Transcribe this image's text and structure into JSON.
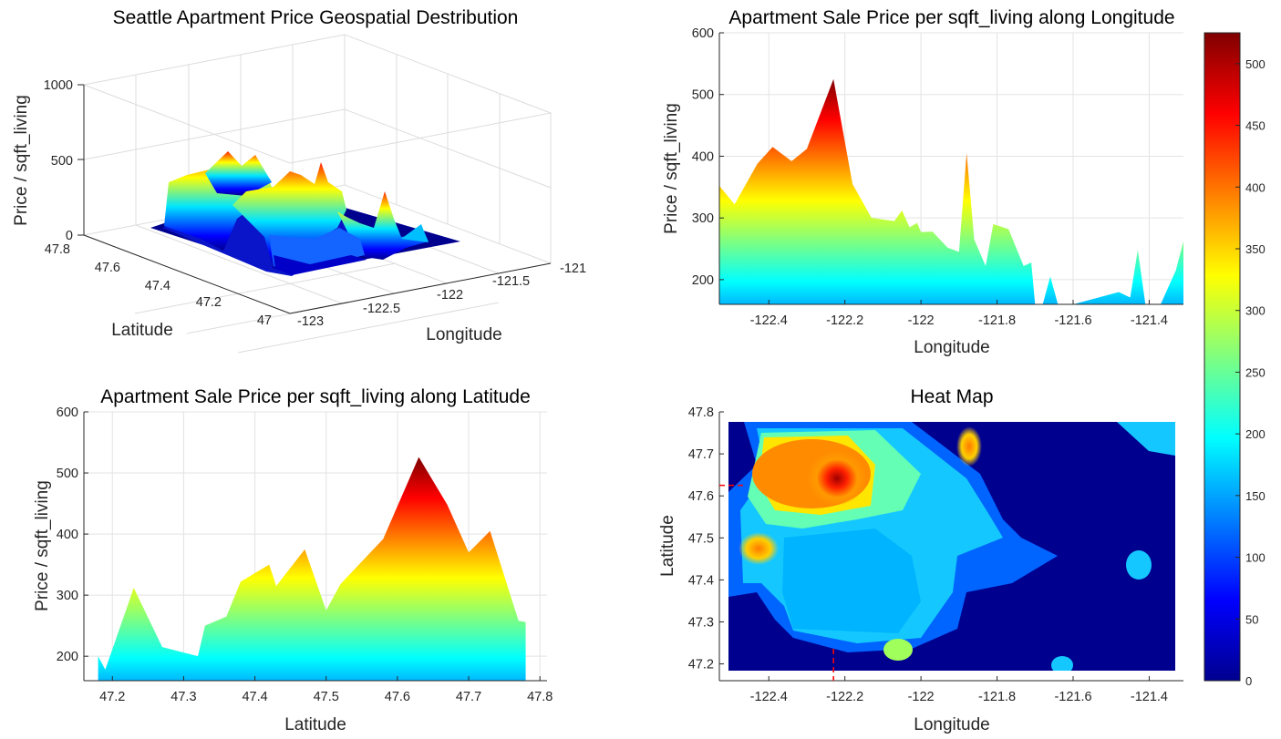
{
  "colors": {
    "axis": "#262626",
    "grid": "#e0e0e0",
    "background": "#ffffff",
    "colormap": "jet"
  },
  "colorbar": {
    "ticks": [
      "0",
      "50",
      "100",
      "150",
      "200",
      "250",
      "300",
      "350",
      "400",
      "450",
      "500"
    ],
    "range": [
      0,
      525
    ]
  },
  "chart_data": [
    {
      "type": "surface-3d",
      "title": "Seattle Apartment Price Geospatial Destribution",
      "xlabel": "Longitude",
      "ylabel": "Latitude",
      "zlabel": "Price / sqft_living",
      "x_ticks": [
        "-123",
        "-122.5",
        "-122",
        "-121.5",
        "-121"
      ],
      "y_ticks": [
        "47",
        "47.2",
        "47.4",
        "47.6",
        "47.8"
      ],
      "z_ticks": [
        "0",
        "500",
        "1000"
      ],
      "xlim": [
        -123,
        -121
      ],
      "ylim": [
        47,
        47.8
      ],
      "zlim": [
        0,
        1000
      ]
    },
    {
      "type": "area",
      "title": "Apartment Sale Price per sqft_living along Longitude",
      "xlabel": "Longitude",
      "ylabel": "Price / sqft_living",
      "x_ticks": [
        "-122.4",
        "-122.2",
        "-122",
        "-121.8",
        "-121.6",
        "-121.4"
      ],
      "y_ticks": [
        "200",
        "300",
        "400",
        "500",
        "600"
      ],
      "xlim": [
        -122.53,
        -121.31
      ],
      "ylim": [
        160,
        600
      ],
      "x": [
        -122.53,
        -122.49,
        -122.43,
        -122.39,
        -122.34,
        -122.3,
        -122.23,
        -122.18,
        -122.13,
        -122.07,
        -122.05,
        -122.03,
        -122.01,
        -122,
        -121.97,
        -121.93,
        -121.9,
        -121.88,
        -121.86,
        -121.83,
        -121.81,
        -121.77,
        -121.73,
        -121.71,
        -121.7,
        -121.68,
        -121.66,
        -121.64,
        -121.62,
        -121.6,
        -121.48,
        -121.45,
        -121.43,
        -121.41,
        -121.39,
        -121.37,
        -121.33,
        -121.31
      ],
      "values": [
        352,
        322,
        388,
        415,
        392,
        412,
        525,
        355,
        300,
        295,
        312,
        285,
        292,
        277,
        278,
        252,
        245,
        405,
        265,
        222,
        290,
        282,
        222,
        228,
        160,
        160,
        205,
        160,
        160,
        160,
        180,
        171,
        248,
        160,
        160,
        160,
        215,
        262
      ]
    },
    {
      "type": "area",
      "title": "Apartment Sale Price per sqft_living along Latitude",
      "xlabel": "Latitude",
      "ylabel": "Price / sqft_living",
      "x_ticks": [
        "47.2",
        "47.3",
        "47.4",
        "47.5",
        "47.6",
        "47.7",
        "47.8"
      ],
      "y_ticks": [
        "200",
        "300",
        "400",
        "500",
        "600"
      ],
      "xlim": [
        47.16,
        47.81
      ],
      "ylim": [
        160,
        600
      ],
      "x": [
        47.18,
        47.19,
        47.23,
        47.27,
        47.28,
        47.32,
        47.33,
        47.36,
        47.38,
        47.42,
        47.43,
        47.47,
        47.5,
        47.52,
        47.58,
        47.63,
        47.67,
        47.7,
        47.73,
        47.77,
        47.78
      ],
      "values": [
        200,
        178,
        312,
        215,
        212,
        200,
        250,
        265,
        322,
        350,
        315,
        375,
        275,
        318,
        392,
        526,
        448,
        370,
        405,
        258,
        256
      ]
    },
    {
      "type": "heatmap",
      "title": "Heat Map",
      "xlabel": "Longitude",
      "ylabel": "Latitude",
      "x_ticks": [
        "-122.4",
        "-122.2",
        "-122",
        "-121.8",
        "-121.6",
        "-121.4"
      ],
      "y_ticks": [
        "47.2",
        "47.3",
        "47.4",
        "47.5",
        "47.6",
        "47.7",
        "47.8"
      ],
      "xlim": [
        -122.53,
        -121.31
      ],
      "ylim": [
        47.16,
        47.8
      ],
      "peak": {
        "lon": -122.23,
        "lat": 47.625,
        "value": 520
      }
    }
  ]
}
